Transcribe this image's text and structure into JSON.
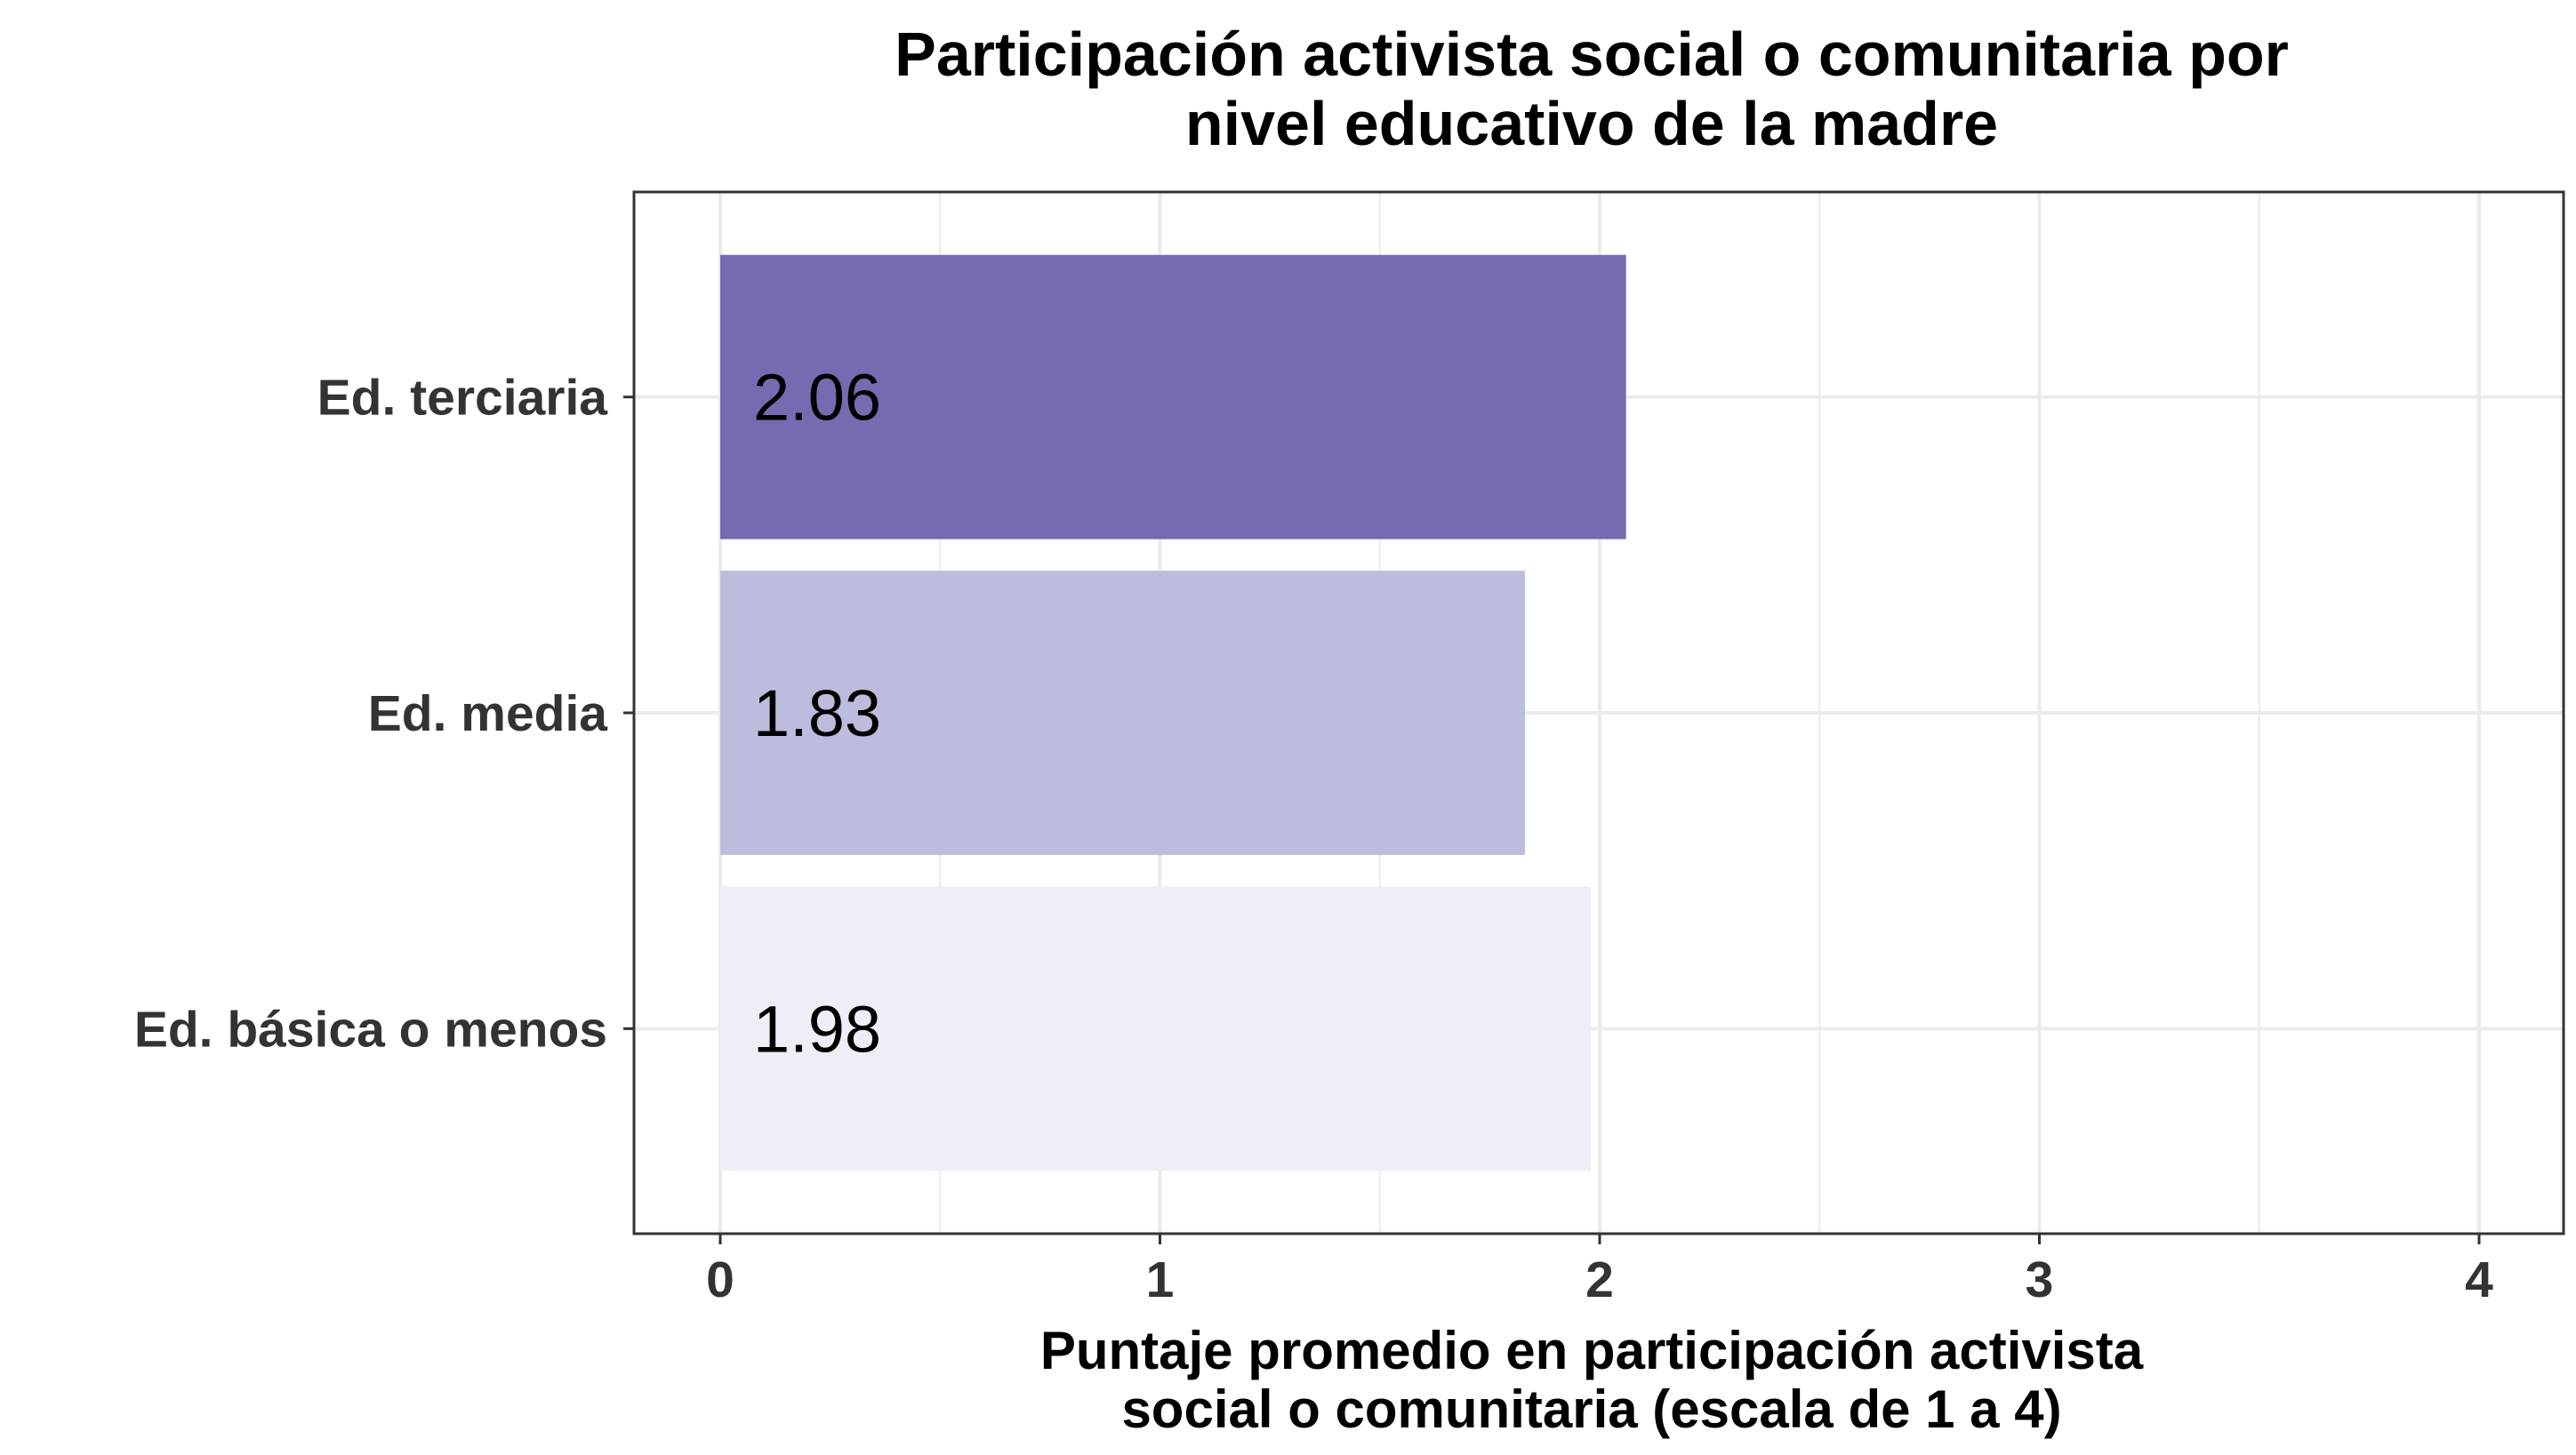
{
  "chart_data": {
    "type": "bar",
    "orientation": "horizontal",
    "title_lines": [
      "Participación activista social o comunitaria por",
      "nivel educativo de la madre"
    ],
    "xlabel_lines": [
      "Puntaje promedio en participación activista",
      "social o comunitaria (escala de 1 a 4)"
    ],
    "ylabel": "",
    "categories": [
      "Ed. terciaria",
      "Ed. media",
      "Ed. básica o menos"
    ],
    "values": [
      2.06,
      1.83,
      1.98
    ],
    "data_labels": [
      "2.06",
      "1.83",
      "1.98"
    ],
    "bar_colors": [
      "#756bb1",
      "#bcbddc",
      "#efedf5"
    ],
    "xlim": [
      0,
      4
    ],
    "xticks": [
      0,
      1,
      2,
      3,
      4
    ],
    "xtick_labels": [
      "0",
      "1",
      "2",
      "3",
      "4"
    ],
    "grid": true,
    "legend": "none"
  }
}
